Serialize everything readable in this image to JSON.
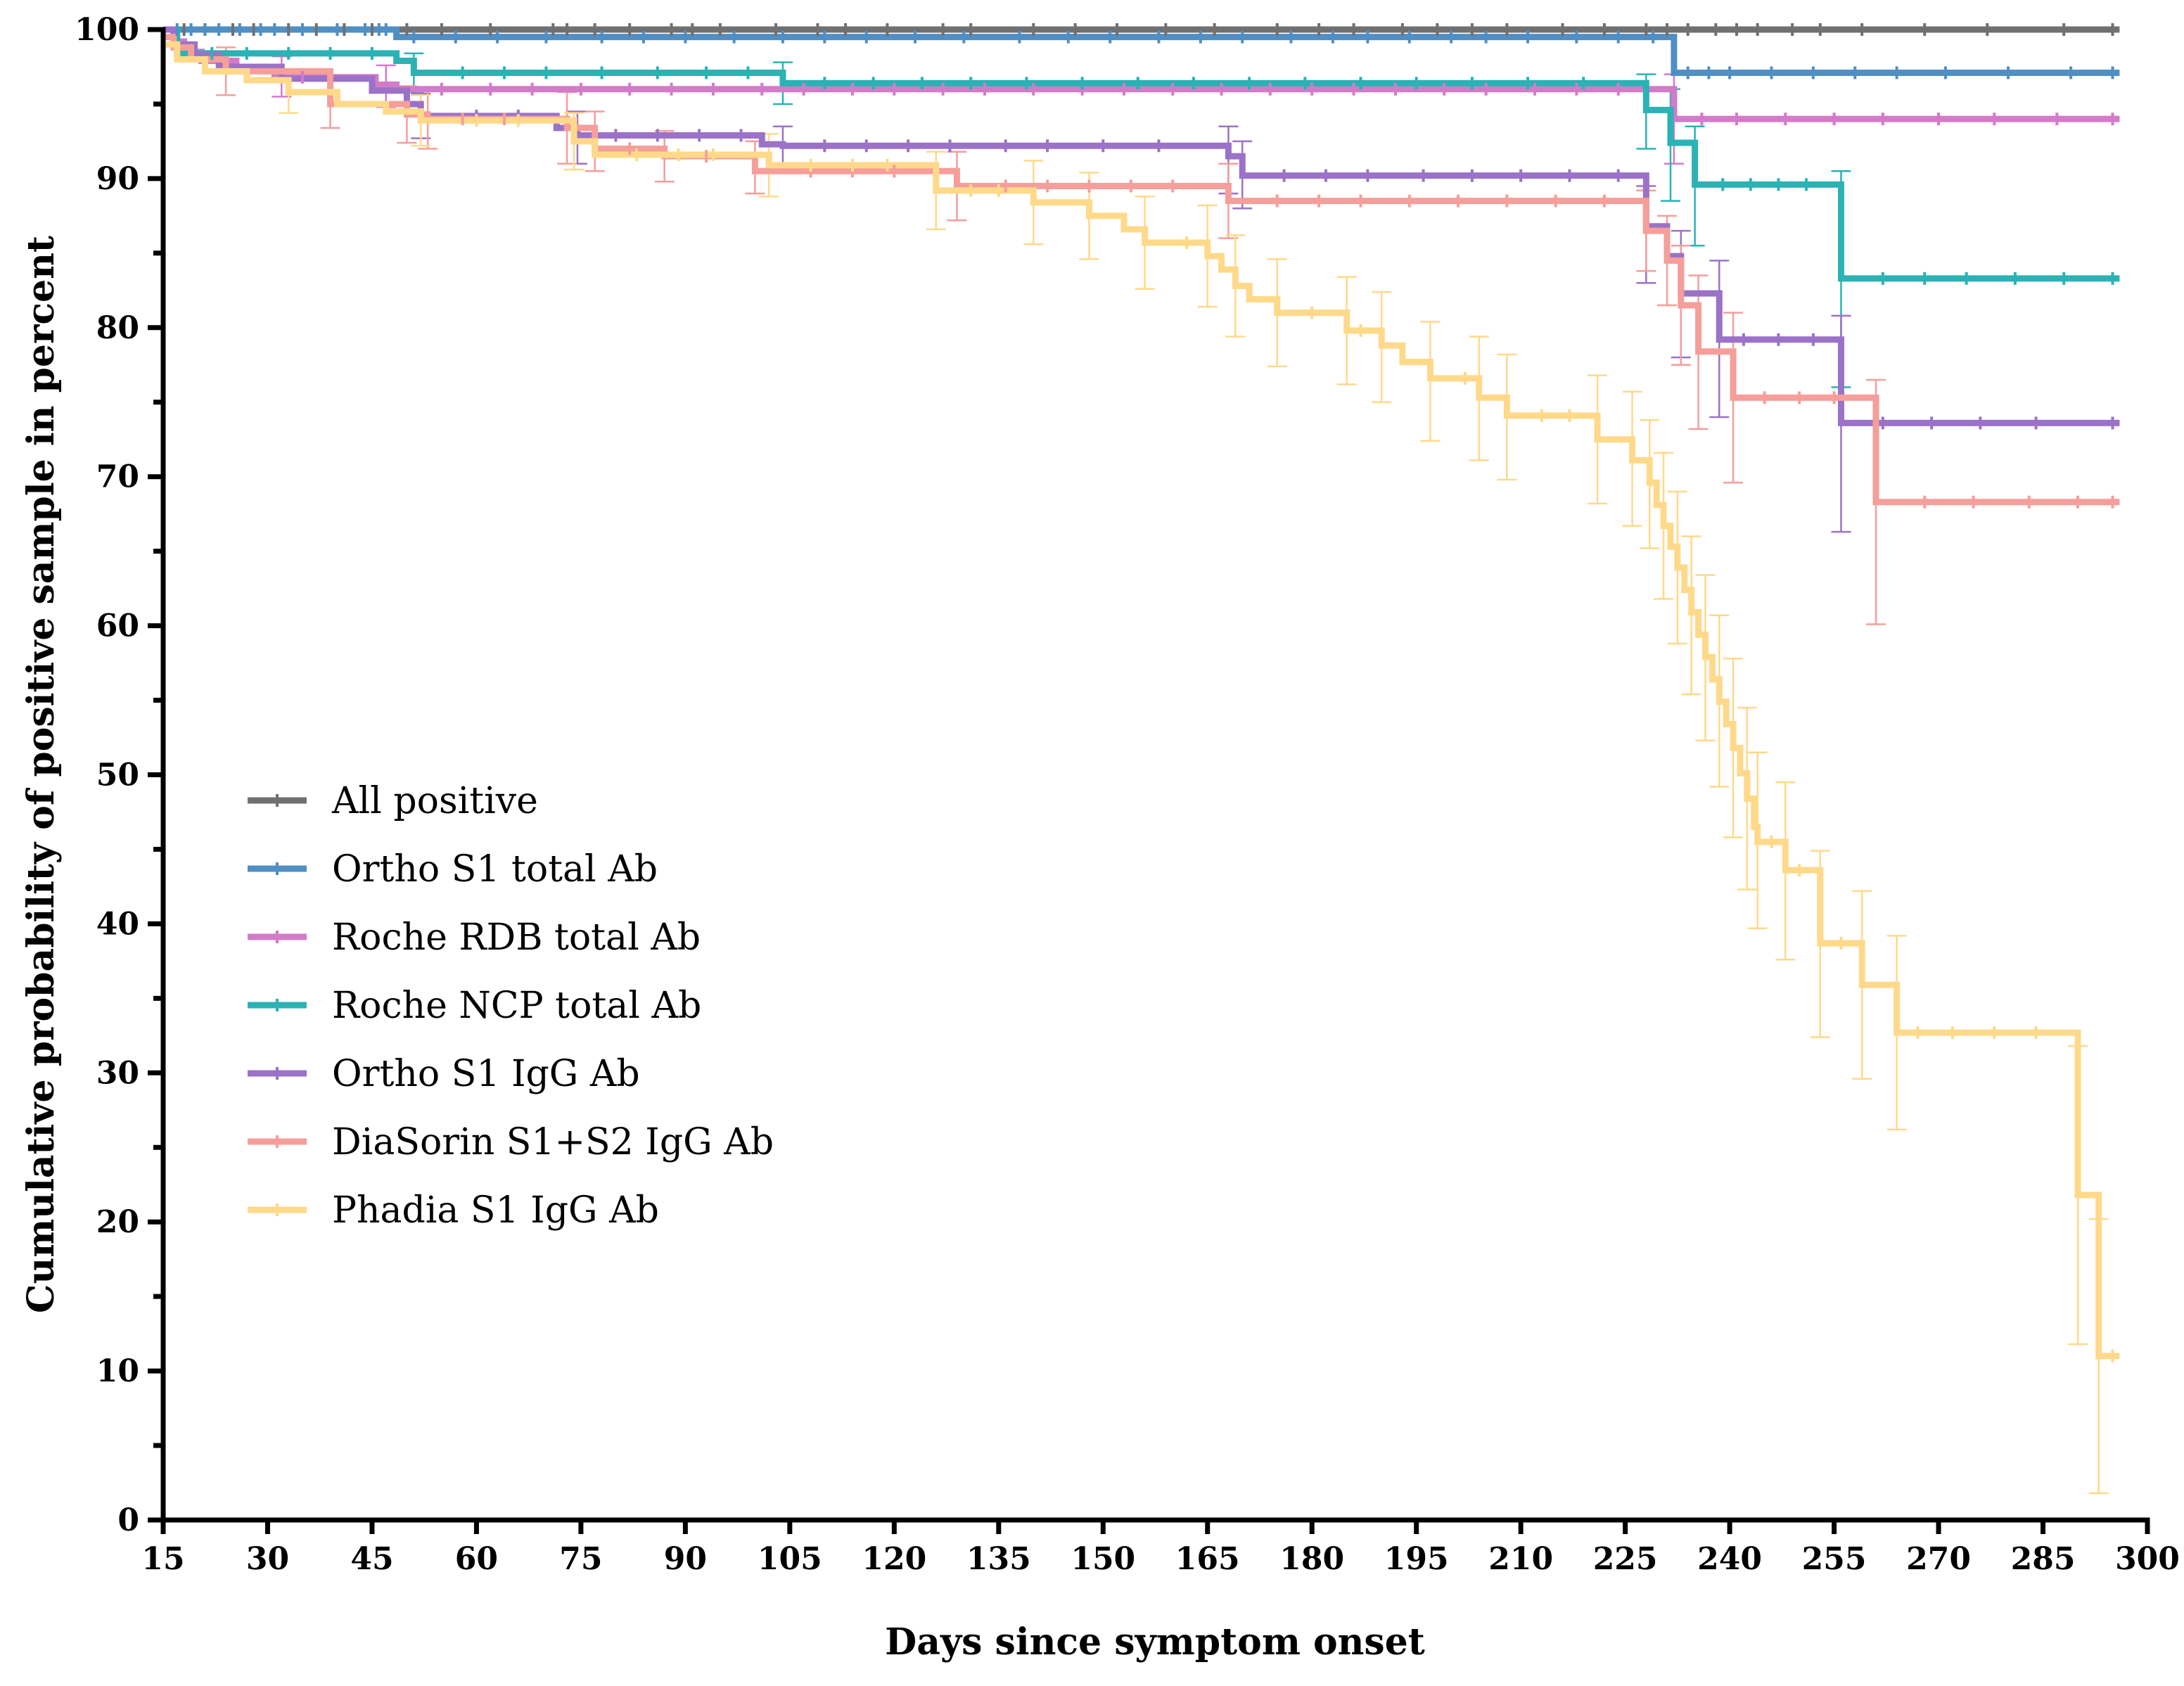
{
  "chart_data": {
    "type": "line",
    "subtype": "kaplan-meier step plot with censoring ticks and error bars",
    "title": "",
    "xlabel": "Days since symptom onset",
    "ylabel": "Cumulative probability of positive sample in percent",
    "xlim": [
      15,
      300
    ],
    "ylim": [
      0,
      100
    ],
    "x_ticks": [
      15,
      30,
      45,
      60,
      75,
      90,
      105,
      120,
      135,
      150,
      165,
      180,
      195,
      210,
      225,
      240,
      255,
      270,
      285,
      300
    ],
    "y_ticks": [
      0,
      10,
      20,
      30,
      40,
      50,
      60,
      70,
      80,
      90,
      100
    ],
    "y_minor_ticks": [
      5,
      15,
      25,
      35,
      45,
      55,
      65,
      75,
      85,
      95
    ],
    "legend_position": "center-left",
    "series": [
      {
        "name": "All positive",
        "color": "#707070",
        "steps": [
          [
            15,
            100
          ],
          [
            296,
            100
          ]
        ],
        "censor_days": [
          18,
          21,
          25,
          28,
          33,
          37,
          41,
          45,
          50,
          55,
          62,
          71,
          73,
          77,
          82,
          88,
          91,
          95,
          103,
          109,
          113,
          119,
          127,
          131,
          140,
          146,
          152,
          159,
          166,
          175,
          181,
          186,
          193,
          198,
          203,
          208,
          216,
          222,
          228,
          231,
          234,
          238,
          241,
          244,
          249,
          253,
          259,
          268,
          277,
          288,
          295
        ],
        "errors": []
      },
      {
        "name": "Ortho S1 total Ab",
        "color": "#4F8FC4",
        "steps": [
          [
            15,
            100
          ],
          [
            48.5,
            99.5
          ],
          [
            232,
            97.1
          ],
          [
            296,
            97.1
          ]
        ],
        "censor_days": [
          17,
          19,
          21,
          23,
          26,
          29,
          31,
          35,
          40,
          44,
          46,
          47,
          51,
          57,
          63,
          70,
          78,
          84,
          90,
          97,
          104,
          110,
          116,
          123,
          130,
          138,
          145,
          151,
          158,
          164,
          170,
          177,
          183,
          188,
          194,
          200,
          205,
          211,
          218,
          224,
          229,
          234,
          237,
          240,
          246,
          252,
          258,
          264,
          271,
          280,
          289,
          295
        ],
        "errors": []
      },
      {
        "name": "Roche RDB total Ab",
        "color": "#D37BC9",
        "steps": [
          [
            15,
            100
          ],
          [
            16.5,
            99.2
          ],
          [
            18,
            98.5
          ],
          [
            20.5,
            97.9
          ],
          [
            25.5,
            97.4
          ],
          [
            31,
            96.8
          ],
          [
            45.5,
            96.3
          ],
          [
            48.5,
            96.0
          ],
          [
            232,
            94.0
          ],
          [
            296,
            94.0
          ]
        ],
        "censor_days": [
          35,
          55,
          62,
          68,
          75,
          82,
          88,
          94,
          101,
          107,
          114,
          120,
          127,
          133,
          140,
          147,
          153,
          160,
          167,
          174,
          180,
          186,
          192,
          199,
          205,
          212,
          218,
          224,
          236,
          241,
          248,
          255,
          262,
          270,
          278,
          287,
          295
        ],
        "errors": [
          [
            32,
            95.5,
            98.2
          ],
          [
            47,
            94.8,
            97.6
          ],
          [
            232,
            91.0,
            97.0
          ]
        ]
      },
      {
        "name": "Roche NCP total Ab",
        "color": "#2BB2B5",
        "steps": [
          [
            15,
            100
          ],
          [
            17,
            98.4
          ],
          [
            48.5,
            97.9
          ],
          [
            51,
            97.1
          ],
          [
            104,
            96.4
          ],
          [
            228,
            94.6
          ],
          [
            231.5,
            92.4
          ],
          [
            235,
            89.6
          ],
          [
            256,
            83.3
          ],
          [
            296,
            83.3
          ]
        ],
        "censor_days": [
          22,
          27,
          33,
          39,
          45,
          58,
          64,
          70,
          78,
          86,
          93,
          99,
          110,
          117,
          124,
          131,
          139,
          147,
          155,
          163,
          171,
          179,
          187,
          195,
          203,
          211,
          219,
          239,
          243,
          247,
          251,
          262,
          268,
          274,
          281,
          288,
          295
        ],
        "errors": [
          [
            51,
            95.8,
            98.4
          ],
          [
            104,
            95.0,
            97.8
          ],
          [
            228,
            92.0,
            97.0
          ],
          [
            231.5,
            88.5,
            96.0
          ],
          [
            235,
            85.5,
            93.5
          ],
          [
            256,
            76.0,
            90.5
          ]
        ]
      },
      {
        "name": "Ortho S1 IgG Ab",
        "color": "#9B72C7",
        "steps": [
          [
            15,
            100
          ],
          [
            16.5,
            99.0
          ],
          [
            19.5,
            98.3
          ],
          [
            23,
            97.5
          ],
          [
            32,
            96.7
          ],
          [
            45,
            95.9
          ],
          [
            50,
            95.0
          ],
          [
            52,
            94.2
          ],
          [
            71.5,
            93.4
          ],
          [
            74.5,
            92.9
          ],
          [
            101,
            92.3
          ],
          [
            104,
            92.2
          ],
          [
            168,
            91.5
          ],
          [
            170,
            90.2
          ],
          [
            228,
            86.8
          ],
          [
            231,
            84.8
          ],
          [
            233,
            82.3
          ],
          [
            238.5,
            79.2
          ],
          [
            256,
            73.6
          ],
          [
            296,
            73.6
          ]
        ],
        "censor_days": [
          60,
          66,
          80,
          86,
          92,
          98,
          110,
          116,
          122,
          128,
          136,
          142,
          150,
          158,
          176,
          182,
          188,
          196,
          203,
          210,
          217,
          224,
          242,
          247,
          252,
          262,
          269,
          276,
          284,
          295
        ],
        "errors": [
          [
            52,
            92.7,
            95.7
          ],
          [
            74.5,
            91.0,
            94.5
          ],
          [
            104,
            90.8,
            93.5
          ],
          [
            168,
            89.0,
            93.5
          ],
          [
            170,
            88.0,
            92.5
          ],
          [
            228,
            83.0,
            89.5
          ],
          [
            233,
            78.0,
            86.5
          ],
          [
            238.5,
            74.0,
            84.5
          ],
          [
            256,
            66.3,
            80.8
          ]
        ]
      },
      {
        "name": "DiaSorin S1+S2 IgG Ab",
        "color": "#F59E9A",
        "steps": [
          [
            15,
            99.5
          ],
          [
            16.5,
            98.8
          ],
          [
            19,
            98.0
          ],
          [
            24,
            97.2
          ],
          [
            39,
            95.0
          ],
          [
            50,
            94.3
          ],
          [
            53,
            94.0
          ],
          [
            73,
            93.4
          ],
          [
            77,
            92.0
          ],
          [
            87,
            91.5
          ],
          [
            100,
            90.5
          ],
          [
            129,
            89.5
          ],
          [
            168,
            88.5
          ],
          [
            228,
            86.5
          ],
          [
            231,
            84.5
          ],
          [
            233,
            81.5
          ],
          [
            235.5,
            78.4
          ],
          [
            240.5,
            75.3
          ],
          [
            261,
            68.3
          ],
          [
            296,
            68.3
          ]
        ],
        "censor_days": [
          58,
          64,
          82,
          93,
          108,
          114,
          120,
          136,
          142,
          148,
          154,
          160,
          175,
          181,
          187,
          194,
          201,
          208,
          215,
          222,
          245,
          250,
          255,
          268,
          275,
          283,
          290,
          295
        ],
        "errors": [
          [
            24,
            95.6,
            98.8
          ],
          [
            39,
            93.4,
            96.6
          ],
          [
            50,
            92.4,
            96.2
          ],
          [
            53,
            92.0,
            96.0
          ],
          [
            73,
            91.0,
            95.8
          ],
          [
            77,
            90.5,
            94.5
          ],
          [
            87,
            89.8,
            93.2
          ],
          [
            100,
            89.0,
            92.5
          ],
          [
            129,
            87.2,
            91.8
          ],
          [
            168,
            86.0,
            91.0
          ],
          [
            228,
            83.8,
            89.2
          ],
          [
            231,
            81.5,
            87.5
          ],
          [
            233,
            77.5,
            85.5
          ],
          [
            235.5,
            73.2,
            83.5
          ],
          [
            240.5,
            69.6,
            81.0
          ],
          [
            261,
            60.1,
            76.5
          ]
        ]
      },
      {
        "name": "Phadia S1 IgG Ab",
        "color": "#FFD98A",
        "steps": [
          [
            15,
            99.0
          ],
          [
            17,
            98.0
          ],
          [
            21,
            97.2
          ],
          [
            27,
            96.6
          ],
          [
            33,
            95.8
          ],
          [
            40,
            95.0
          ],
          [
            47,
            94.5
          ],
          [
            52,
            93.9
          ],
          [
            74,
            92.5
          ],
          [
            77,
            91.6
          ],
          [
            102,
            90.9
          ],
          [
            126,
            89.2
          ],
          [
            140,
            88.4
          ],
          [
            148,
            87.5
          ],
          [
            153,
            86.6
          ],
          [
            156,
            85.7
          ],
          [
            165,
            84.8
          ],
          [
            167,
            83.9
          ],
          [
            169,
            82.8
          ],
          [
            171,
            81.9
          ],
          [
            175,
            81.0
          ],
          [
            185,
            79.8
          ],
          [
            190,
            78.8
          ],
          [
            193,
            77.7
          ],
          [
            197,
            76.6
          ],
          [
            204,
            75.3
          ],
          [
            208,
            74.1
          ],
          [
            221,
            72.5
          ],
          [
            226,
            71.1
          ],
          [
            228.5,
            69.6
          ],
          [
            229.5,
            68.1
          ],
          [
            230.5,
            66.7
          ],
          [
            231.5,
            65.3
          ],
          [
            232.5,
            63.9
          ],
          [
            233.5,
            62.4
          ],
          [
            234.5,
            60.9
          ],
          [
            235.5,
            59.4
          ],
          [
            236.5,
            57.9
          ],
          [
            237.5,
            56.4
          ],
          [
            238.5,
            54.9
          ],
          [
            239.5,
            53.4
          ],
          [
            240.5,
            51.8
          ],
          [
            241.5,
            50.1
          ],
          [
            242.5,
            48.4
          ],
          [
            243.5,
            46.5
          ],
          [
            244,
            45.5
          ],
          [
            248,
            43.6
          ],
          [
            253,
            38.7
          ],
          [
            259,
            35.9
          ],
          [
            264,
            32.7
          ],
          [
            290,
            21.8
          ],
          [
            293,
            11.0
          ],
          [
            296,
            11.0
          ]
        ],
        "censor_days": [
          60,
          66,
          83,
          89,
          94,
          108,
          114,
          119,
          131,
          135,
          162,
          180,
          187,
          202,
          213,
          217,
          246,
          250,
          256,
          267,
          272,
          278,
          284,
          295
        ],
        "errors": [
          [
            33,
            94.4,
            97.2
          ],
          [
            52,
            92.2,
            95.6
          ],
          [
            74,
            90.6,
            94.4
          ],
          [
            102,
            88.8,
            93.0
          ],
          [
            126,
            86.6,
            91.8
          ],
          [
            140,
            85.6,
            91.2
          ],
          [
            148,
            84.6,
            90.4
          ],
          [
            156,
            82.6,
            88.8
          ],
          [
            165,
            81.4,
            88.2
          ],
          [
            169,
            79.4,
            86.2
          ],
          [
            175,
            77.4,
            84.6
          ],
          [
            185,
            76.2,
            83.4
          ],
          [
            190,
            75.0,
            82.4
          ],
          [
            197,
            72.4,
            80.4
          ],
          [
            204,
            71.1,
            79.4
          ],
          [
            208,
            69.8,
            78.2
          ],
          [
            221,
            68.2,
            76.8
          ],
          [
            226,
            66.7,
            75.7
          ],
          [
            228.5,
            65.2,
            73.8
          ],
          [
            230.5,
            61.8,
            71.6
          ],
          [
            232.5,
            58.8,
            69.0
          ],
          [
            234.5,
            55.4,
            66.0
          ],
          [
            236.5,
            52.3,
            63.4
          ],
          [
            238.5,
            49.2,
            60.7
          ],
          [
            240.5,
            45.8,
            57.8
          ],
          [
            242.5,
            42.3,
            54.5
          ],
          [
            244,
            39.7,
            51.5
          ],
          [
            248,
            37.6,
            49.5
          ],
          [
            253,
            32.4,
            44.9
          ],
          [
            259,
            29.6,
            42.2
          ],
          [
            264,
            26.2,
            39.2
          ],
          [
            290,
            11.8,
            31.8
          ],
          [
            293,
            1.8,
            20.2
          ]
        ]
      }
    ]
  }
}
